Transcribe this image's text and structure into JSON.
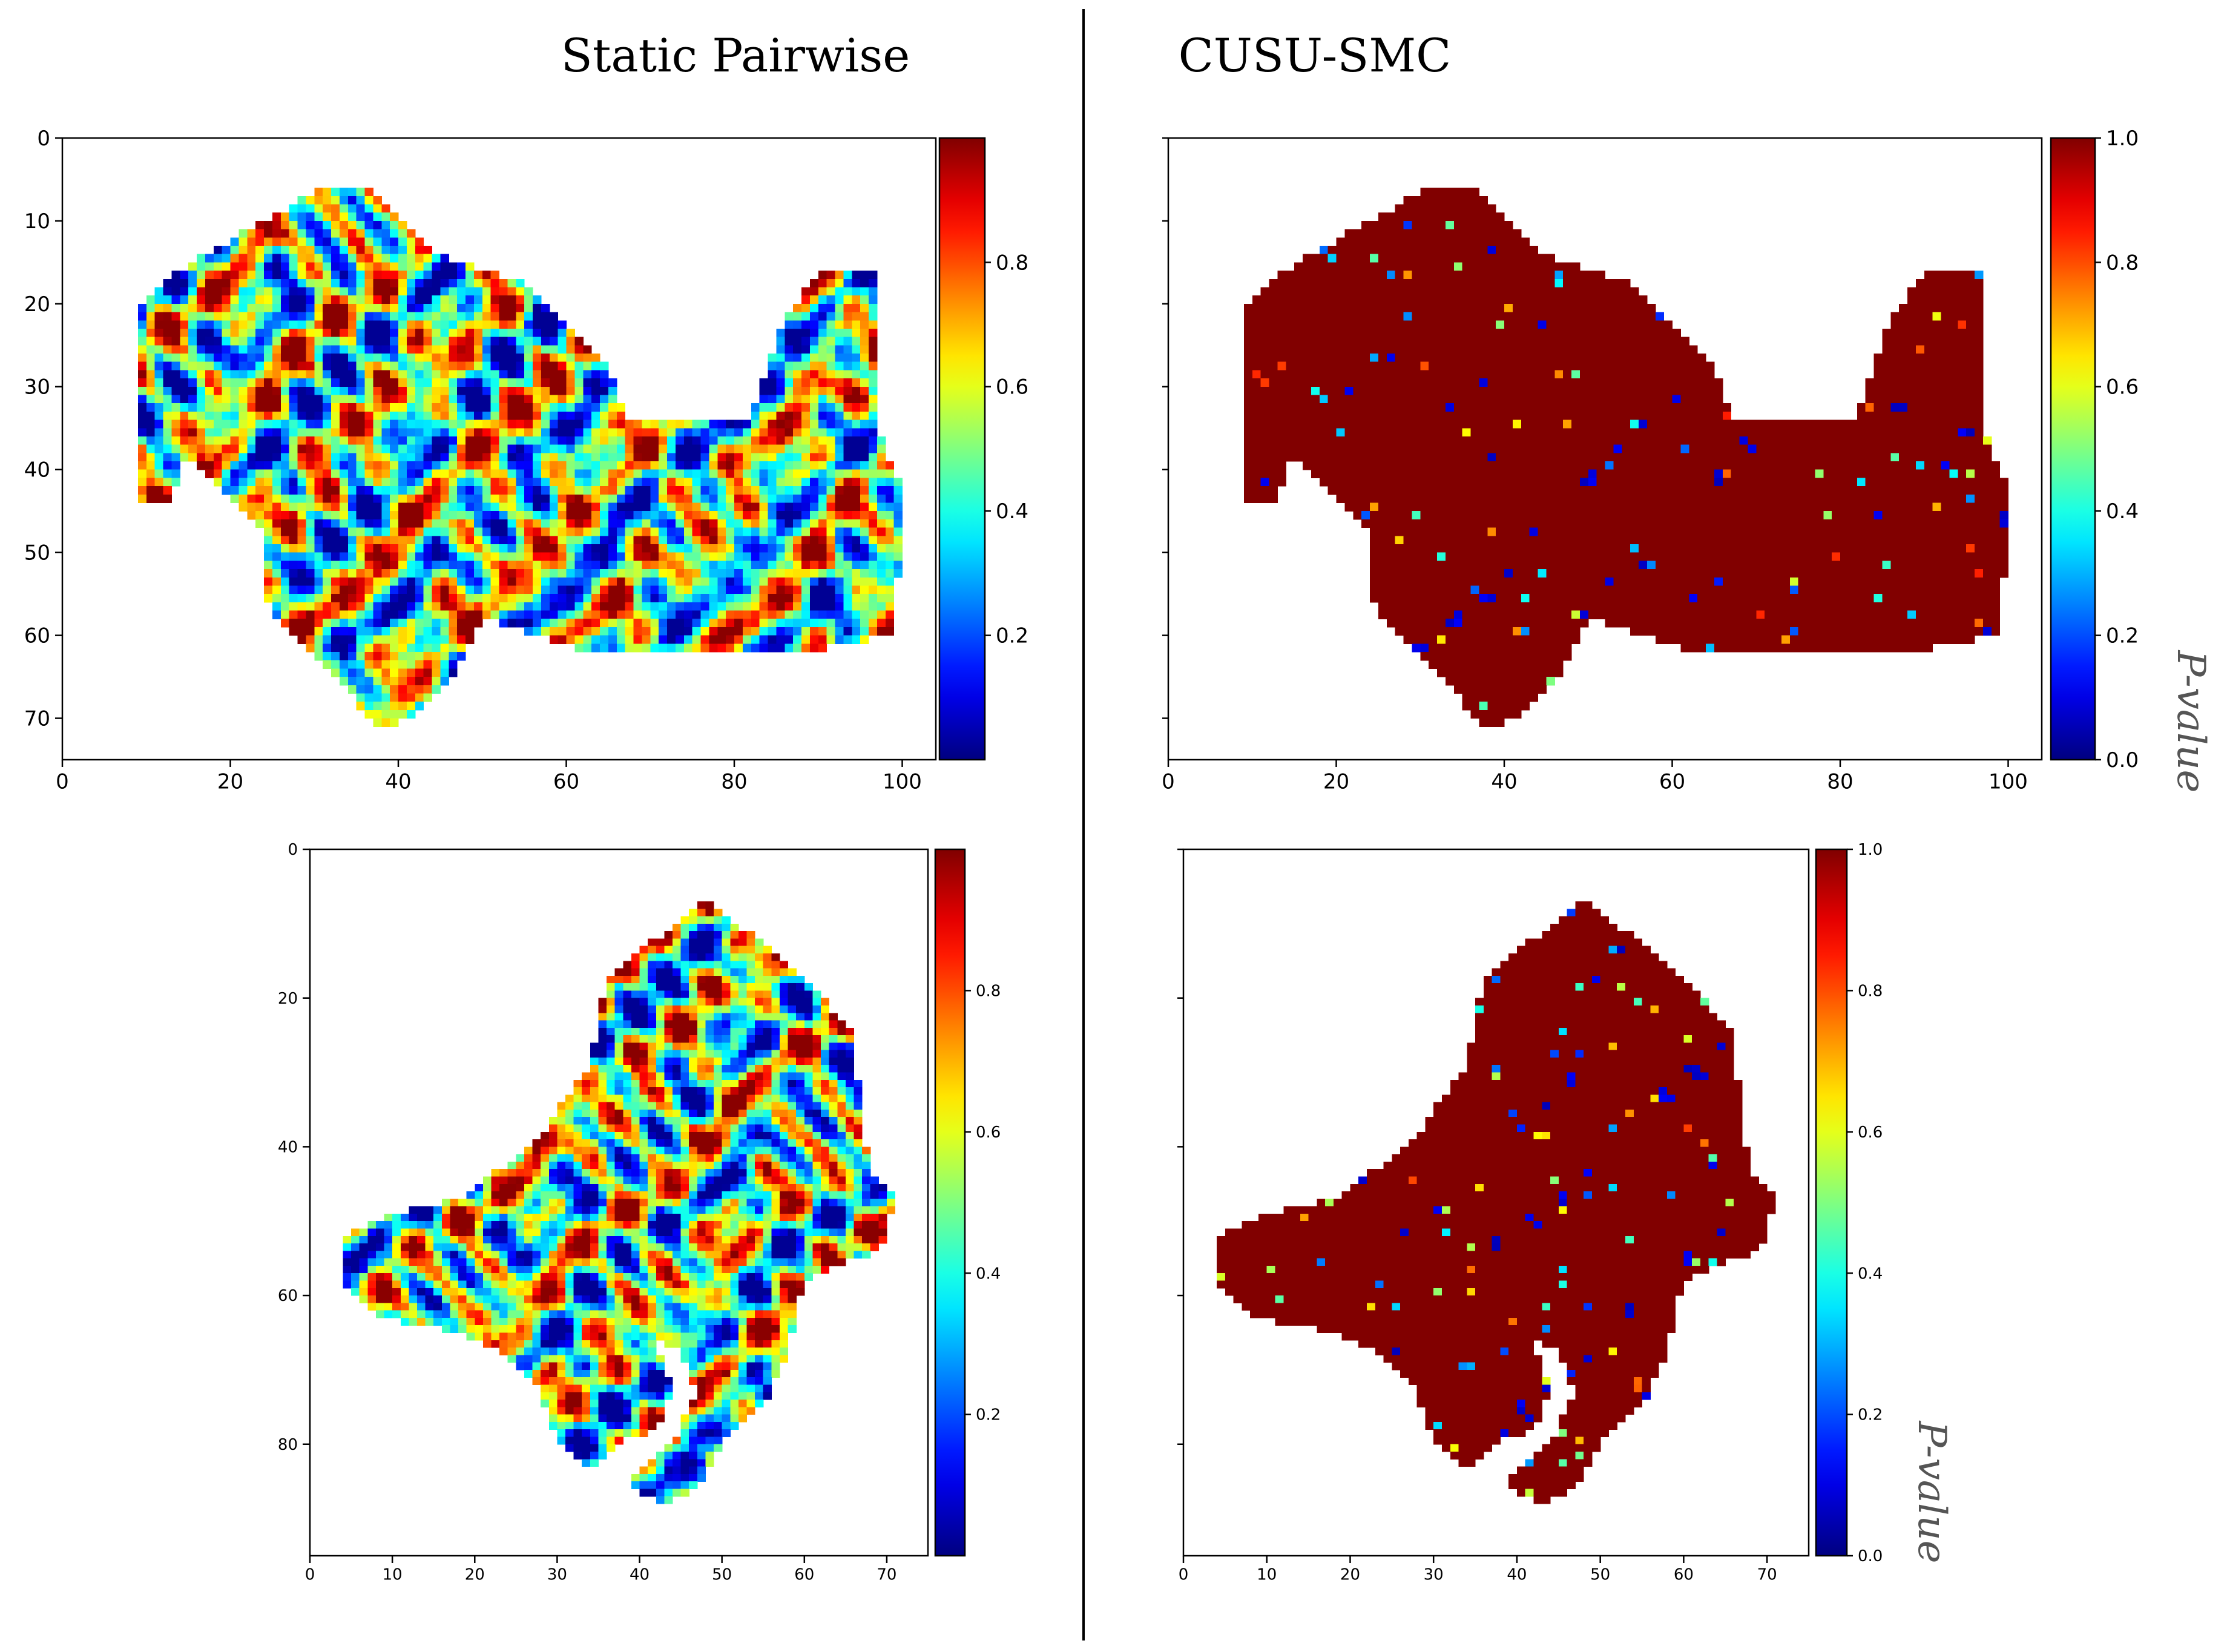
{
  "titles": {
    "left": "Static Pairwise",
    "right": "CUSU-SMC"
  },
  "colorbar_label": "P-value",
  "colormap": "jet",
  "chart_data": [
    {
      "type": "heatmap",
      "id": "top-left",
      "method": "Static Pairwise",
      "grid": {
        "cols": 104,
        "rows": 76
      },
      "xlim": [
        0,
        104
      ],
      "ylim": [
        75,
        0
      ],
      "xticks": [
        0,
        20,
        40,
        60,
        80,
        100
      ],
      "yticks": [
        0,
        10,
        20,
        30,
        40,
        50,
        60,
        70
      ],
      "colorbar": {
        "ticks": [
          0.2,
          0.4,
          0.6,
          0.8
        ],
        "tick_labels": [
          "0.2",
          "0.4",
          "0.6",
          "0.8"
        ],
        "range": [
          0.0,
          1.0
        ]
      },
      "value_pattern": "mixed",
      "mask_polygon": [
        [
          9,
          20
        ],
        [
          14,
          16
        ],
        [
          24,
          10
        ],
        [
          31,
          6
        ],
        [
          36,
          6
        ],
        [
          45,
          14
        ],
        [
          56,
          18
        ],
        [
          65,
          27
        ],
        [
          67,
          34
        ],
        [
          82,
          34
        ],
        [
          86,
          22
        ],
        [
          90,
          16
        ],
        [
          97,
          16
        ],
        [
          97,
          35
        ],
        [
          100,
          42
        ],
        [
          100,
          46
        ],
        [
          99,
          60
        ],
        [
          88,
          62
        ],
        [
          63,
          62
        ],
        [
          57,
          60
        ],
        [
          50,
          58
        ],
        [
          47,
          64
        ],
        [
          42,
          70
        ],
        [
          38,
          71
        ],
        [
          35,
          68
        ],
        [
          28,
          60
        ],
        [
          25,
          57
        ],
        [
          24,
          54
        ],
        [
          24,
          48
        ],
        [
          22,
          45
        ],
        [
          15,
          38
        ],
        [
          14,
          40
        ],
        [
          13,
          44
        ],
        [
          9,
          44
        ]
      ]
    },
    {
      "type": "heatmap",
      "id": "top-right",
      "method": "CUSU-SMC",
      "grid": {
        "cols": 104,
        "rows": 76
      },
      "xlim": [
        0,
        104
      ],
      "ylim": [
        75,
        0
      ],
      "xticks": [
        0,
        20,
        40,
        60,
        80,
        100
      ],
      "yticks": [],
      "colorbar": {
        "ticks": [
          0.0,
          0.2,
          0.4,
          0.6,
          0.8,
          1.0
        ],
        "tick_labels": [
          "0.0",
          "0.2",
          "0.4",
          "0.6",
          "0.8",
          "1.0"
        ],
        "range": [
          0.0,
          1.0
        ]
      },
      "value_pattern": "mostly_high",
      "mask_polygon": [
        [
          9,
          20
        ],
        [
          14,
          16
        ],
        [
          24,
          10
        ],
        [
          31,
          6
        ],
        [
          36,
          6
        ],
        [
          45,
          14
        ],
        [
          56,
          18
        ],
        [
          65,
          27
        ],
        [
          67,
          34
        ],
        [
          82,
          34
        ],
        [
          86,
          22
        ],
        [
          90,
          16
        ],
        [
          97,
          16
        ],
        [
          97,
          35
        ],
        [
          100,
          42
        ],
        [
          100,
          46
        ],
        [
          99,
          60
        ],
        [
          88,
          62
        ],
        [
          63,
          62
        ],
        [
          57,
          60
        ],
        [
          50,
          58
        ],
        [
          47,
          64
        ],
        [
          42,
          70
        ],
        [
          38,
          71
        ],
        [
          35,
          68
        ],
        [
          28,
          60
        ],
        [
          25,
          57
        ],
        [
          24,
          54
        ],
        [
          24,
          48
        ],
        [
          22,
          45
        ],
        [
          15,
          38
        ],
        [
          14,
          40
        ],
        [
          13,
          44
        ],
        [
          9,
          44
        ]
      ]
    },
    {
      "type": "heatmap",
      "id": "bottom-left",
      "method": "Static Pairwise",
      "grid": {
        "cols": 75,
        "rows": 95
      },
      "xlim": [
        0,
        75
      ],
      "ylim": [
        95,
        0
      ],
      "xticks": [
        0,
        10,
        20,
        30,
        40,
        50,
        60,
        70
      ],
      "yticks": [
        0,
        20,
        40,
        60,
        80
      ],
      "colorbar": {
        "ticks": [
          0.2,
          0.4,
          0.6,
          0.8
        ],
        "tick_labels": [
          "0.2",
          "0.4",
          "0.6",
          "0.8"
        ],
        "range": [
          0.0,
          1.0
        ]
      },
      "value_pattern": "mixed",
      "mask_polygon": [
        [
          4,
          52
        ],
        [
          10,
          49
        ],
        [
          18,
          47
        ],
        [
          27,
          40
        ],
        [
          34,
          29
        ],
        [
          36,
          17
        ],
        [
          42,
          12
        ],
        [
          48,
          7
        ],
        [
          53,
          11
        ],
        [
          61,
          18
        ],
        [
          66,
          25
        ],
        [
          67,
          36
        ],
        [
          68,
          43
        ],
        [
          71,
          47
        ],
        [
          70,
          52
        ],
        [
          68,
          55
        ],
        [
          66,
          55
        ],
        [
          60,
          58
        ],
        [
          58,
          68
        ],
        [
          55,
          75
        ],
        [
          50,
          80
        ],
        [
          47,
          86
        ],
        [
          43,
          88
        ],
        [
          39,
          86
        ],
        [
          40,
          83
        ],
        [
          44,
          80
        ],
        [
          47,
          73
        ],
        [
          45,
          67
        ],
        [
          42,
          66
        ],
        [
          44,
          73
        ],
        [
          42,
          78
        ],
        [
          37,
          80
        ],
        [
          34,
          84
        ],
        [
          30,
          79
        ],
        [
          28,
          73
        ],
        [
          24,
          68
        ],
        [
          20,
          66
        ],
        [
          15,
          64
        ],
        [
          8,
          63
        ],
        [
          4,
          58
        ]
      ]
    },
    {
      "type": "heatmap",
      "id": "bottom-right",
      "method": "CUSU-SMC",
      "grid": {
        "cols": 75,
        "rows": 95
      },
      "xlim": [
        0,
        75
      ],
      "ylim": [
        95,
        0
      ],
      "xticks": [
        0,
        10,
        20,
        30,
        40,
        50,
        60,
        70
      ],
      "yticks": [],
      "colorbar": {
        "ticks": [
          0.0,
          0.2,
          0.4,
          0.6,
          0.8,
          1.0
        ],
        "tick_labels": [
          "0.0",
          "0.2",
          "0.4",
          "0.6",
          "0.8",
          "1.0"
        ],
        "range": [
          0.0,
          1.0
        ]
      },
      "value_pattern": "mostly_high",
      "mask_polygon": [
        [
          4,
          52
        ],
        [
          10,
          49
        ],
        [
          18,
          47
        ],
        [
          27,
          40
        ],
        [
          34,
          29
        ],
        [
          36,
          17
        ],
        [
          42,
          12
        ],
        [
          48,
          7
        ],
        [
          53,
          11
        ],
        [
          61,
          18
        ],
        [
          66,
          25
        ],
        [
          67,
          36
        ],
        [
          68,
          43
        ],
        [
          71,
          47
        ],
        [
          70,
          52
        ],
        [
          68,
          55
        ],
        [
          66,
          55
        ],
        [
          60,
          58
        ],
        [
          58,
          68
        ],
        [
          55,
          75
        ],
        [
          50,
          80
        ],
        [
          47,
          86
        ],
        [
          43,
          88
        ],
        [
          39,
          86
        ],
        [
          40,
          83
        ],
        [
          44,
          80
        ],
        [
          47,
          73
        ],
        [
          45,
          67
        ],
        [
          42,
          66
        ],
        [
          44,
          73
        ],
        [
          42,
          78
        ],
        [
          37,
          80
        ],
        [
          34,
          84
        ],
        [
          30,
          79
        ],
        [
          28,
          73
        ],
        [
          24,
          68
        ],
        [
          20,
          66
        ],
        [
          15,
          64
        ],
        [
          8,
          63
        ],
        [
          4,
          58
        ]
      ]
    }
  ]
}
